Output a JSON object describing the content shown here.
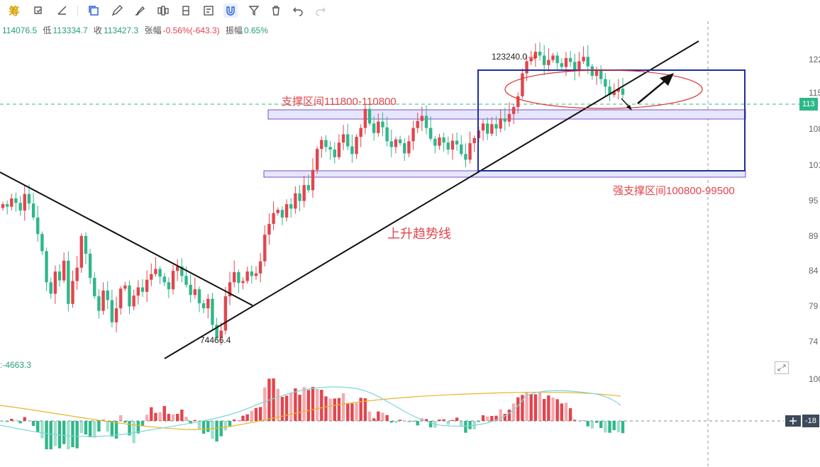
{
  "toolbar": {
    "chip_label": "筹",
    "tools": [
      "clone-icon",
      "pencil-icon",
      "brush-icon",
      "candles-icon",
      "position-icon",
      "note-icon",
      "magnet-icon",
      "filter-icon",
      "trash-icon",
      "undo-icon",
      "redo-icon"
    ]
  },
  "ohlc": {
    "open": "114076.5",
    "low_label": "低",
    "low": "113334.7",
    "close_label": "收",
    "close": "113427.3",
    "change_label": "张幅",
    "change": "-0.56%(-643.3)",
    "amp_label": "振幅",
    "amplitude": "0.65%"
  },
  "annotations": {
    "high_price": "123240.0",
    "low_price": "74466.4",
    "support_zone": "支撑区间111800-110800",
    "strong_support": "强支撑区间100800-99500",
    "trend_line": "上升趋势线",
    "macd_label": ":-4663.3"
  },
  "price_axis": {
    "ticks": [
      "122",
      "115",
      "108",
      "101",
      "95",
      "89",
      "84",
      "79",
      "74"
    ],
    "current_price_badge": "113",
    "macd_ticks": [
      "100"
    ],
    "macd_badge": "-18"
  },
  "colors": {
    "up": "#e2454d",
    "down": "#2fb78a",
    "support_band": "#e6e6ff",
    "support_border": "#7a4fc7",
    "box": "#1e2f9e",
    "ellipse": "#e03030",
    "dif_line": "#7fd6d8",
    "dea_line": "#e8b42c"
  },
  "chart_data": {
    "type": "candlestick",
    "title": "",
    "ylim": [
      72000,
      125000
    ],
    "high": 123240.0,
    "low": 74466.4,
    "last": 113427.3,
    "support_zones": [
      [
        110800,
        111800
      ],
      [
        99500,
        100800
      ]
    ],
    "closes": [
      96200,
      95800,
      97100,
      96400,
      95200,
      97800,
      96300,
      94100,
      91500,
      88800,
      83900,
      82100,
      85600,
      84200,
      87300,
      80500,
      84100,
      86200,
      91200,
      88400,
      84600,
      81700,
      79400,
      82600,
      81100,
      77600,
      79800,
      82900,
      83400,
      80100,
      81800,
      83100,
      82400,
      84300,
      85200,
      86000,
      84800,
      83900,
      82800,
      85700,
      86400,
      84900,
      83500,
      81900,
      82800,
      80600,
      79800,
      81300,
      77200,
      75200,
      76300,
      81700,
      83900,
      85500,
      83800,
      84100,
      85600,
      84900,
      85300,
      87200,
      91400,
      93100,
      94800,
      95300,
      94100,
      96200,
      95500,
      97900,
      96700,
      99200,
      98400,
      101600,
      104900,
      106300,
      105200,
      104800,
      103600,
      105900,
      107200,
      105300,
      104100,
      106800,
      108200,
      111200,
      108900,
      107400,
      109200,
      108300,
      106100,
      105200,
      106400,
      105800,
      104200,
      106100,
      108200,
      109300,
      110100,
      108200,
      106500,
      105400,
      106700,
      105900,
      104800,
      106200,
      105600,
      104100,
      103200,
      105800,
      106600,
      107800,
      108900,
      107300,
      108800,
      108100,
      109700,
      109200,
      110400,
      111500,
      113200,
      116800,
      118700,
      119200,
      120200,
      119600,
      118100,
      118900,
      119600,
      118400,
      117800,
      119200,
      118600,
      117300,
      118700,
      119400,
      117900,
      116400,
      117300,
      115900,
      114700,
      113400,
      113900,
      114400,
      113427
    ]
  }
}
